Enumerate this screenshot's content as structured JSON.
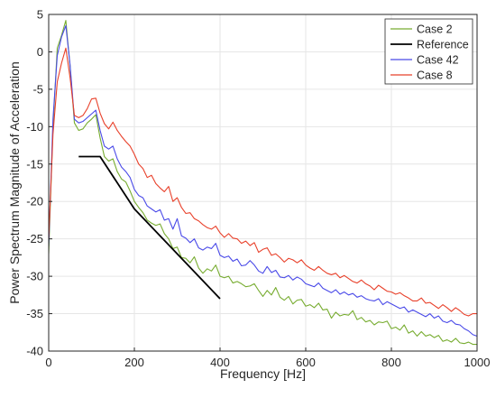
{
  "chart_data": {
    "type": "line",
    "title": "",
    "xlabel": "Frequency [Hz]",
    "ylabel": "Power Spectrum Magnitude of Acceleration",
    "xlim": [
      0,
      1000
    ],
    "ylim": [
      -40,
      5
    ],
    "xticks": [
      0,
      200,
      400,
      600,
      800,
      1000
    ],
    "yticks": [
      -40,
      -35,
      -30,
      -25,
      -20,
      -15,
      -10,
      -5,
      0,
      5
    ],
    "grid": true,
    "legend_position": "top-right",
    "series": [
      {
        "name": "Case 2",
        "color": "#77ac30",
        "x": [
          0,
          10,
          20,
          30,
          40,
          50,
          60,
          70,
          80,
          90,
          100,
          110,
          120,
          130,
          140,
          150,
          160,
          170,
          180,
          190,
          200,
          210,
          220,
          230,
          240,
          250,
          260,
          270,
          280,
          290,
          300,
          310,
          320,
          330,
          340,
          350,
          360,
          370,
          380,
          390,
          400,
          410,
          420,
          430,
          440,
          450,
          460,
          470,
          480,
          490,
          500,
          510,
          520,
          530,
          540,
          550,
          560,
          570,
          580,
          590,
          600,
          610,
          620,
          630,
          640,
          650,
          660,
          670,
          680,
          690,
          700,
          710,
          720,
          730,
          740,
          750,
          760,
          770,
          780,
          790,
          800,
          810,
          820,
          830,
          840,
          850,
          860,
          870,
          880,
          890,
          900,
          910,
          920,
          930,
          940,
          950,
          960,
          970,
          980,
          990,
          1000
        ],
        "values": [
          -27,
          -10,
          0.5,
          2.2,
          4.2,
          -2,
          -9.5,
          -10.5,
          -10.3,
          -9.5,
          -9,
          -8.4,
          -11.5,
          -14,
          -14.6,
          -14.3,
          -16,
          -17,
          -17.4,
          -18.6,
          -20,
          -20.8,
          -21.5,
          -22.5,
          -22.9,
          -23.2,
          -23,
          -24.3,
          -25,
          -26.3,
          -26.1,
          -27.5,
          -27.6,
          -28.2,
          -27.4,
          -28.9,
          -29.6,
          -29,
          -29.3,
          -28.5,
          -30,
          -30.2,
          -30,
          -30.9,
          -30.7,
          -31,
          -31.4,
          -31.3,
          -31,
          -31.9,
          -32.7,
          -31.9,
          -32.5,
          -31.5,
          -32.8,
          -33.2,
          -32.7,
          -33.7,
          -33.2,
          -33.1,
          -34,
          -33.8,
          -34.2,
          -33.6,
          -34.5,
          -34.4,
          -35.6,
          -34.8,
          -35.3,
          -35.1,
          -35.2,
          -34.6,
          -35.8,
          -35.5,
          -36.1,
          -35.9,
          -36.5,
          -36.1,
          -36.2,
          -36,
          -37,
          -36.8,
          -37.2,
          -36.5,
          -37.6,
          -37.3,
          -38,
          -37.4,
          -38,
          -37.8,
          -38.2,
          -37.9,
          -38.7,
          -38.5,
          -38.8,
          -38.3,
          -38.9,
          -39,
          -38.8,
          -39.1,
          -39.1
        ]
      },
      {
        "name": "Reference",
        "color": "#000000",
        "x": [
          70,
          120,
          200,
          300,
          400
        ],
        "values": [
          -14,
          -14,
          -21,
          -27,
          -33
        ]
      },
      {
        "name": "Case 42",
        "color": "#4a4ae8",
        "x": [
          0,
          10,
          20,
          30,
          40,
          50,
          60,
          70,
          80,
          90,
          100,
          110,
          120,
          130,
          140,
          150,
          160,
          170,
          180,
          190,
          200,
          210,
          220,
          230,
          240,
          250,
          260,
          270,
          280,
          290,
          300,
          310,
          320,
          330,
          340,
          350,
          360,
          370,
          380,
          390,
          400,
          410,
          420,
          430,
          440,
          450,
          460,
          470,
          480,
          490,
          500,
          510,
          520,
          530,
          540,
          550,
          560,
          570,
          580,
          590,
          600,
          610,
          620,
          630,
          640,
          650,
          660,
          670,
          680,
          690,
          700,
          710,
          720,
          730,
          740,
          750,
          760,
          770,
          780,
          790,
          800,
          810,
          820,
          830,
          840,
          850,
          860,
          870,
          880,
          890,
          900,
          910,
          920,
          930,
          940,
          950,
          960,
          970,
          980,
          990,
          1000
        ],
        "values": [
          -26,
          -9,
          -0.5,
          2,
          3.5,
          -1.8,
          -9,
          -9.5,
          -9.3,
          -8.8,
          -8.3,
          -7.8,
          -10.5,
          -12.6,
          -13,
          -12.6,
          -14.3,
          -15.4,
          -16,
          -16.8,
          -18.4,
          -19.2,
          -19.5,
          -20.6,
          -21,
          -21.4,
          -21.1,
          -22.5,
          -22.3,
          -23.7,
          -22.3,
          -24.6,
          -24.9,
          -25.5,
          -25,
          -26.2,
          -26.5,
          -26.1,
          -26.3,
          -25.6,
          -27.2,
          -27.5,
          -27.3,
          -28,
          -27.7,
          -28.6,
          -28.5,
          -27.9,
          -28.5,
          -29.3,
          -29.6,
          -28.7,
          -29.5,
          -29.2,
          -30.1,
          -30.2,
          -29.9,
          -30.5,
          -30.1,
          -30.4,
          -31,
          -31.2,
          -31.4,
          -30.9,
          -31.6,
          -31.9,
          -32.2,
          -31.8,
          -32.4,
          -32.1,
          -32.5,
          -32.3,
          -32.8,
          -32.6,
          -33,
          -33.2,
          -33.3,
          -33,
          -33.8,
          -33.4,
          -33.7,
          -34,
          -34.3,
          -34.1,
          -34.8,
          -34.5,
          -34.8,
          -35.1,
          -35.4,
          -35,
          -35.6,
          -35.3,
          -36,
          -36.2,
          -35.9,
          -36.4,
          -36.5,
          -37,
          -37.3,
          -37.8,
          -38
        ]
      },
      {
        "name": "Case 8",
        "color": "#e8402a",
        "x": [
          0,
          10,
          20,
          30,
          40,
          50,
          60,
          70,
          80,
          90,
          100,
          110,
          120,
          130,
          140,
          150,
          160,
          170,
          180,
          190,
          200,
          210,
          220,
          230,
          240,
          250,
          260,
          270,
          280,
          290,
          300,
          310,
          320,
          330,
          340,
          350,
          360,
          370,
          380,
          390,
          400,
          410,
          420,
          430,
          440,
          450,
          460,
          470,
          480,
          490,
          500,
          510,
          520,
          530,
          540,
          550,
          560,
          570,
          580,
          590,
          600,
          610,
          620,
          630,
          640,
          650,
          660,
          670,
          680,
          690,
          700,
          710,
          720,
          730,
          740,
          750,
          760,
          770,
          780,
          790,
          800,
          810,
          820,
          830,
          840,
          850,
          860,
          870,
          880,
          890,
          900,
          910,
          920,
          930,
          940,
          950,
          960,
          970,
          980,
          990,
          1000
        ],
        "values": [
          -25,
          -11,
          -4,
          -1.5,
          0.5,
          -3.5,
          -8.5,
          -8.8,
          -8.5,
          -7.6,
          -6.3,
          -6.2,
          -8.2,
          -9.6,
          -10.3,
          -9.4,
          -10.5,
          -11.3,
          -12,
          -12.6,
          -13.7,
          -15,
          -15.6,
          -16.8,
          -16.5,
          -17.6,
          -18.2,
          -18.7,
          -18,
          -20,
          -19.5,
          -20.8,
          -21.6,
          -21.5,
          -22.3,
          -22.6,
          -23.1,
          -23.5,
          -23.7,
          -23.3,
          -24.2,
          -24.8,
          -24.3,
          -24.9,
          -25,
          -25.6,
          -25.3,
          -25.9,
          -25.5,
          -26.8,
          -26.4,
          -26.2,
          -27.2,
          -27,
          -27.5,
          -28.1,
          -27.6,
          -27.8,
          -28.2,
          -27.8,
          -28.5,
          -28.9,
          -29.2,
          -28.7,
          -29.2,
          -29.6,
          -29.8,
          -29.6,
          -30.2,
          -29.9,
          -30.3,
          -30.7,
          -30.9,
          -30.5,
          -31,
          -31.3,
          -31.8,
          -31.2,
          -31.6,
          -32,
          -32.1,
          -32.4,
          -32.2,
          -32.6,
          -32.9,
          -33.3,
          -33.3,
          -32.9,
          -33.6,
          -33.5,
          -33.9,
          -34.3,
          -33.8,
          -34.2,
          -34.7,
          -34.2,
          -34.6,
          -35.1,
          -35.3,
          -35,
          -35
        ]
      }
    ]
  }
}
